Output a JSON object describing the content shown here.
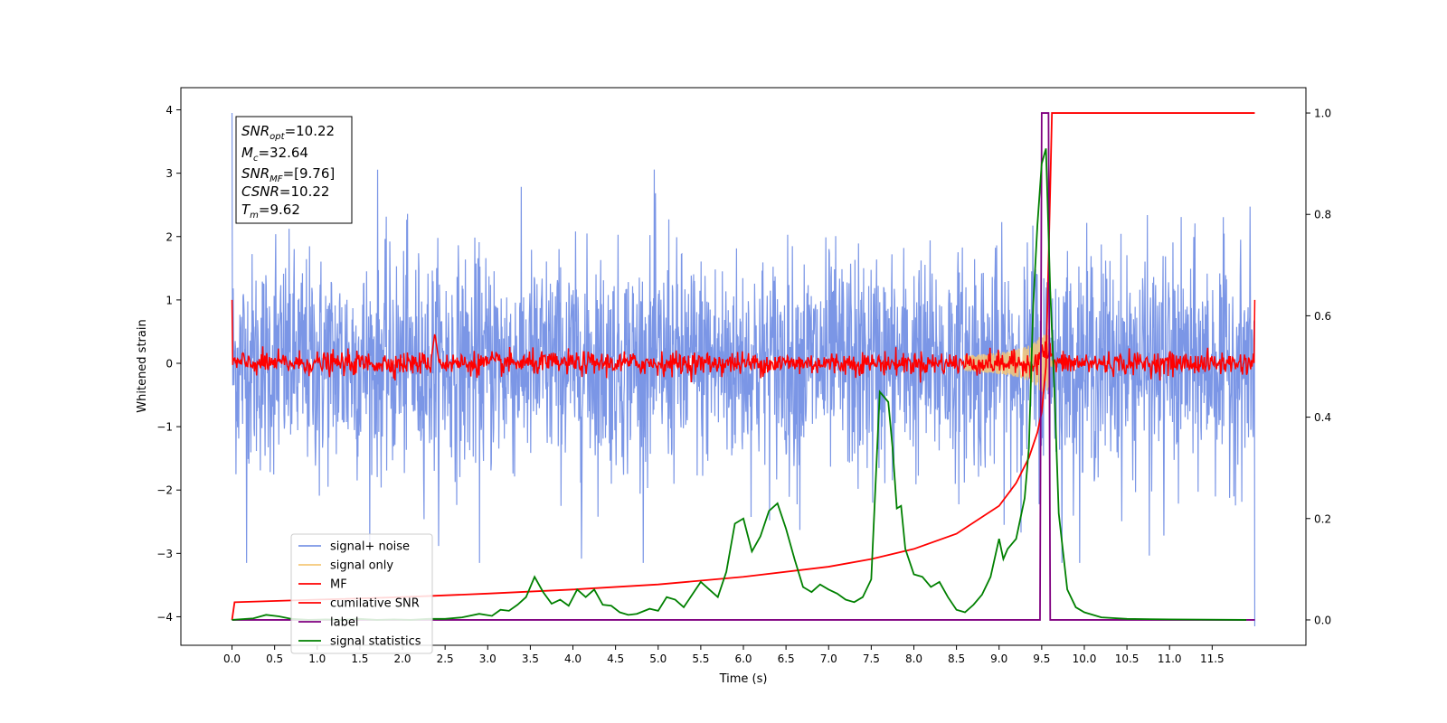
{
  "chart_data": {
    "type": "line",
    "xlabel": "Time (s)",
    "ylabel": "Whitened strain",
    "xlim": [
      -0.6,
      12.6
    ],
    "ylim": [
      -4.45,
      4.35
    ],
    "ylim_right": [
      -0.05,
      1.05
    ],
    "x_ticks": [
      "0.0",
      "0.5",
      "1.0",
      "1.5",
      "2.0",
      "2.5",
      "3.0",
      "3.5",
      "4.0",
      "4.5",
      "5.0",
      "5.5",
      "6.0",
      "6.5",
      "7.0",
      "7.5",
      "8.0",
      "8.5",
      "9.0",
      "9.5",
      "10.0",
      "10.5",
      "11.0",
      "11.5"
    ],
    "y_ticks": [
      "4",
      "3",
      "2",
      "1",
      "0",
      "−1",
      "−2",
      "−3",
      "−4"
    ],
    "y_ticks_right": [
      "1.0",
      "0.8",
      "0.6",
      "0.4",
      "0.2",
      "0.0"
    ],
    "grid": false,
    "legend_position": "lower-left",
    "annotation": {
      "snr_opt": "10.22",
      "mc": "32.64",
      "snr_mf": "[9.76]",
      "csnr": "10.22",
      "tm": "9.62"
    },
    "series": [
      {
        "name": "signal+ noise",
        "color": "#7b96e6",
        "axis": "left",
        "duration": 12.0,
        "amplitude_std": 0.85,
        "range": [
          -3.15,
          3.95
        ]
      },
      {
        "name": "signal only",
        "color": "#f5c878",
        "axis": "left",
        "chirp_peak_time": 9.55,
        "peak_amplitude": 0.45
      },
      {
        "name": "MF",
        "color": "#ff0000",
        "axis": "left",
        "baseline": 0.0,
        "start_value": 1.0,
        "end_value": 1.0,
        "spike_time": 2.38,
        "spike_value": 0.48
      },
      {
        "name": "cumilative SNR",
        "color": "#ff0000",
        "axis": "right",
        "x": [
          0.0,
          0.03,
          1.0,
          2.0,
          3.0,
          4.0,
          5.0,
          6.0,
          7.0,
          7.5,
          8.0,
          8.5,
          9.0,
          9.2,
          9.35,
          9.45,
          9.5,
          9.55,
          9.6,
          9.62,
          12.0
        ],
        "y": [
          0.0,
          0.035,
          0.04,
          0.045,
          0.052,
          0.06,
          0.07,
          0.085,
          0.105,
          0.12,
          0.14,
          0.17,
          0.225,
          0.27,
          0.32,
          0.37,
          0.41,
          0.5,
          0.85,
          1.0,
          1.0
        ]
      },
      {
        "name": "label",
        "color": "#800080",
        "axis": "right",
        "x": [
          0.0,
          9.48,
          9.5,
          9.58,
          9.6,
          12.0
        ],
        "y": [
          0.0,
          0.0,
          1.0,
          1.0,
          0.0,
          0.0
        ]
      },
      {
        "name": "signal statistics",
        "color": "#008000",
        "axis": "right",
        "x": [
          0.0,
          0.25,
          0.4,
          0.55,
          0.7,
          0.9,
          1.1,
          1.3,
          1.5,
          1.7,
          1.9,
          2.1,
          2.3,
          2.5,
          2.7,
          2.9,
          3.05,
          3.15,
          3.25,
          3.35,
          3.45,
          3.55,
          3.65,
          3.75,
          3.85,
          3.95,
          4.05,
          4.15,
          4.25,
          4.35,
          4.45,
          4.55,
          4.65,
          4.75,
          4.9,
          5.0,
          5.1,
          5.2,
          5.3,
          5.4,
          5.5,
          5.6,
          5.7,
          5.8,
          5.9,
          6.0,
          6.1,
          6.2,
          6.3,
          6.4,
          6.5,
          6.6,
          6.7,
          6.8,
          6.9,
          7.0,
          7.1,
          7.2,
          7.3,
          7.4,
          7.5,
          7.6,
          7.7,
          7.75,
          7.8,
          7.85,
          7.9,
          8.0,
          8.1,
          8.2,
          8.3,
          8.4,
          8.5,
          8.6,
          8.7,
          8.8,
          8.9,
          9.0,
          9.05,
          9.1,
          9.2,
          9.3,
          9.35,
          9.4,
          9.45,
          9.5,
          9.55,
          9.6,
          9.65,
          9.7,
          9.8,
          9.9,
          10.0,
          10.2,
          10.5,
          11.0,
          11.9
        ],
        "y": [
          0.0,
          0.003,
          0.01,
          0.007,
          0.002,
          0.0,
          0.001,
          0.0,
          0.002,
          0.0,
          0.001,
          0.0,
          0.002,
          0.002,
          0.005,
          0.012,
          0.008,
          0.02,
          0.018,
          0.03,
          0.045,
          0.085,
          0.055,
          0.032,
          0.04,
          0.028,
          0.06,
          0.045,
          0.06,
          0.03,
          0.028,
          0.015,
          0.01,
          0.012,
          0.022,
          0.018,
          0.045,
          0.04,
          0.025,
          0.05,
          0.075,
          0.06,
          0.045,
          0.095,
          0.19,
          0.2,
          0.135,
          0.165,
          0.215,
          0.23,
          0.18,
          0.12,
          0.065,
          0.055,
          0.07,
          0.06,
          0.052,
          0.04,
          0.035,
          0.045,
          0.08,
          0.45,
          0.43,
          0.34,
          0.22,
          0.225,
          0.14,
          0.09,
          0.085,
          0.065,
          0.075,
          0.045,
          0.02,
          0.015,
          0.03,
          0.05,
          0.085,
          0.16,
          0.12,
          0.14,
          0.16,
          0.24,
          0.34,
          0.62,
          0.78,
          0.9,
          0.93,
          0.65,
          0.45,
          0.21,
          0.06,
          0.025,
          0.015,
          0.005,
          0.002,
          0.001,
          0.0
        ]
      }
    ]
  }
}
